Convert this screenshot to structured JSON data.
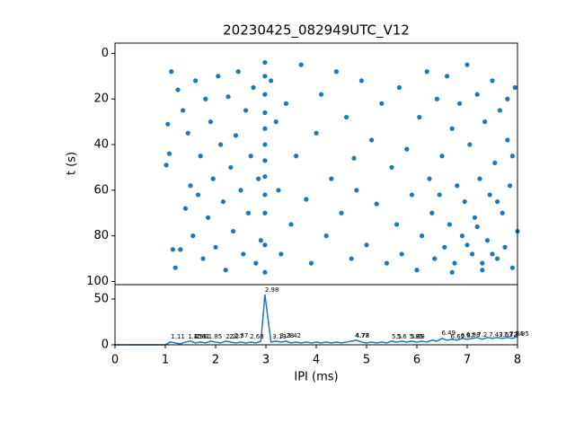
{
  "chart_data": [
    {
      "type": "scatter",
      "title": "20230425_082949UTC_V12",
      "ylabel": "t (s)",
      "color": "#1f77b4",
      "xlim": [
        0,
        8
      ],
      "ylim": [
        -4.5,
        101.4
      ],
      "invert_y": true,
      "yticks": [
        0,
        20,
        40,
        60,
        80,
        100
      ],
      "x": [
        1.05,
        1.02,
        1.08,
        1.12,
        1.15,
        1.2,
        1.25,
        1.3,
        1.35,
        1.4,
        1.45,
        1.5,
        1.55,
        1.6,
        1.65,
        1.7,
        1.75,
        1.8,
        1.85,
        1.9,
        1.95,
        2.0,
        2.05,
        2.1,
        2.15,
        2.2,
        2.25,
        2.3,
        2.35,
        2.4,
        2.45,
        2.5,
        2.55,
        2.6,
        2.65,
        2.7,
        2.75,
        2.8,
        2.85,
        2.9,
        2.98,
        2.98,
        2.98,
        2.98,
        2.98,
        2.98,
        2.98,
        2.98,
        2.98,
        2.98,
        2.98,
        2.98,
        3.1,
        3.2,
        3.25,
        3.3,
        3.4,
        3.5,
        3.6,
        3.7,
        3.8,
        3.9,
        4.0,
        4.1,
        4.2,
        4.3,
        4.4,
        4.5,
        4.6,
        4.7,
        4.75,
        4.8,
        4.9,
        5.0,
        5.1,
        5.2,
        5.3,
        5.4,
        5.5,
        5.6,
        5.65,
        5.7,
        5.8,
        5.9,
        6.0,
        6.05,
        6.1,
        6.2,
        6.25,
        6.3,
        6.35,
        6.4,
        6.45,
        6.5,
        6.55,
        6.6,
        6.65,
        6.7,
        6.75,
        6.8,
        6.85,
        6.9,
        6.95,
        7.0,
        7.05,
        7.1,
        7.15,
        7.2,
        7.25,
        7.3,
        7.35,
        7.4,
        7.45,
        7.5,
        7.55,
        7.6,
        7.65,
        7.7,
        7.75,
        7.8,
        7.85,
        7.9,
        7.95,
        8.0,
        7.9,
        7.6,
        7.3,
        7.0,
        6.7,
        7.8,
        7.5,
        7.2
      ],
      "y": [
        31,
        49,
        44,
        8,
        86,
        94,
        16,
        86,
        25,
        68,
        35,
        58,
        80,
        12,
        62,
        45,
        90,
        20,
        72,
        30,
        55,
        85,
        10,
        40,
        65,
        95,
        19,
        50,
        78,
        36,
        8,
        60,
        88,
        25,
        70,
        45,
        15,
        92,
        55,
        82,
        4,
        10,
        18,
        26,
        33,
        40,
        47,
        54,
        62,
        70,
        84,
        96,
        12,
        30,
        60,
        88,
        22,
        75,
        45,
        5,
        64,
        92,
        35,
        18,
        80,
        55,
        8,
        70,
        28,
        90,
        46,
        60,
        12,
        84,
        38,
        66,
        22,
        92,
        50,
        75,
        15,
        88,
        42,
        62,
        95,
        28,
        80,
        8,
        55,
        70,
        90,
        20,
        62,
        45,
        85,
        10,
        75,
        33,
        92,
        58,
        22,
        80,
        65,
        5,
        40,
        88,
        72,
        18,
        55,
        95,
        30,
        82,
        62,
        12,
        48,
        90,
        25,
        70,
        85,
        38,
        58,
        94,
        15,
        78,
        45,
        65,
        92,
        84,
        96,
        20,
        88,
        76
      ]
    },
    {
      "type": "line",
      "xlabel": "IPI (ms)",
      "color": "#1f77b4",
      "xlim": [
        0,
        8
      ],
      "ylim": [
        0,
        65.7
      ],
      "xticks": [
        0,
        1,
        2,
        3,
        4,
        5,
        6,
        7,
        8
      ],
      "yticks": [
        0,
        50
      ],
      "x": [
        0,
        0.1,
        0.2,
        0.3,
        0.4,
        0.5,
        0.6,
        0.7,
        0.8,
        0.9,
        1.0,
        1.1,
        1.2,
        1.3,
        1.4,
        1.5,
        1.6,
        1.7,
        1.8,
        1.9,
        2.0,
        2.1,
        2.2,
        2.3,
        2.4,
        2.5,
        2.6,
        2.7,
        2.8,
        2.9,
        2.98,
        3.1,
        3.2,
        3.3,
        3.4,
        3.5,
        3.6,
        3.7,
        3.8,
        3.9,
        4.0,
        4.1,
        4.2,
        4.3,
        4.4,
        4.5,
        4.6,
        4.7,
        4.8,
        4.9,
        5.0,
        5.1,
        5.2,
        5.3,
        5.4,
        5.5,
        5.6,
        5.7,
        5.8,
        5.9,
        6.0,
        6.1,
        6.2,
        6.3,
        6.4,
        6.5,
        6.6,
        6.7,
        6.8,
        6.9,
        7.0,
        7.1,
        7.2,
        7.3,
        7.4,
        7.5,
        7.6,
        7.7,
        7.8,
        7.9,
        8.0
      ],
      "values": [
        0,
        0,
        0,
        0,
        0,
        0,
        0,
        0,
        0,
        0,
        0,
        3,
        2,
        1,
        3,
        4,
        2,
        3,
        2,
        4,
        3,
        2,
        4,
        3,
        2,
        3,
        2,
        3,
        2,
        4,
        55,
        3,
        4,
        3,
        4,
        2,
        3,
        2,
        3,
        2,
        3,
        2,
        3,
        2,
        3,
        2,
        3,
        4,
        5,
        3,
        2,
        3,
        2,
        3,
        2,
        4,
        3,
        4,
        3,
        4,
        3,
        4,
        3,
        5,
        4,
        7,
        5,
        6,
        5,
        7,
        6,
        7,
        8,
        6,
        8,
        7,
        8,
        7,
        8,
        7,
        9
      ],
      "annotations": [
        {
          "x": 1.11,
          "y": 4
        },
        {
          "x": 1.45,
          "y": 4
        },
        {
          "x": 1.56,
          "y": 4
        },
        {
          "x": 1.61,
          "y": 4
        },
        {
          "x": 1.85,
          "y": 4
        },
        {
          "x": 2.2,
          "y": 4
        },
        {
          "x": 2.27,
          "y": 4
        },
        {
          "x": 2.37,
          "y": 5
        },
        {
          "x": 2.68,
          "y": 4
        },
        {
          "x": 2.98,
          "y": 55
        },
        {
          "x": 3.13,
          "y": 4
        },
        {
          "x": 3.28,
          "y": 5
        },
        {
          "x": 3.42,
          "y": 5
        },
        {
          "x": 4.77,
          "y": 5
        },
        {
          "x": 4.78,
          "y": 5
        },
        {
          "x": 5.5,
          "y": 4
        },
        {
          "x": 5.6,
          "y": 4
        },
        {
          "x": 5.85,
          "y": 4
        },
        {
          "x": 5.88,
          "y": 4
        },
        {
          "x": 6.49,
          "y": 8
        },
        {
          "x": 6.67,
          "y": 4
        },
        {
          "x": 6.87,
          "y": 5
        },
        {
          "x": 6.98,
          "y": 6
        },
        {
          "x": 7.2,
          "y": 6
        },
        {
          "x": 7.43,
          "y": 6
        },
        {
          "x": 7.63,
          "y": 6
        },
        {
          "x": 7.72,
          "y": 6
        },
        {
          "x": 7.84,
          "y": 7
        },
        {
          "x": 7.95,
          "y": 7
        }
      ]
    }
  ]
}
